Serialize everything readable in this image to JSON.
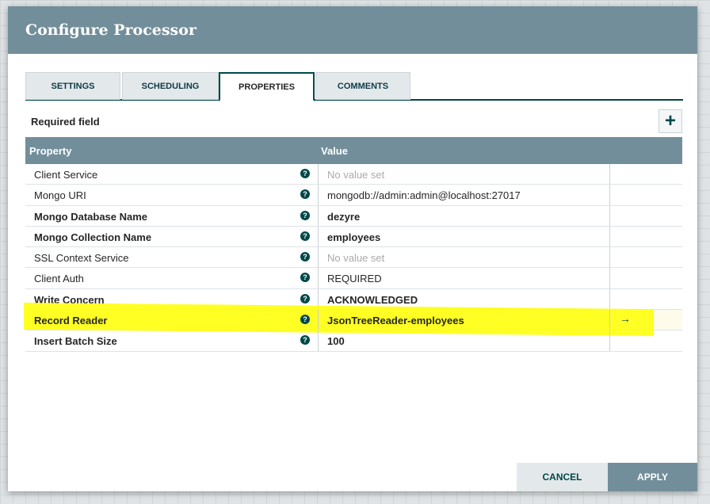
{
  "dialog": {
    "title": "Configure Processor"
  },
  "tabs": [
    {
      "label": "SETTINGS"
    },
    {
      "label": "SCHEDULING"
    },
    {
      "label": "PROPERTIES",
      "active": true
    },
    {
      "label": "COMMENTS"
    }
  ],
  "required_label": "Required field",
  "add_icon": "plus-icon",
  "table": {
    "headers": {
      "property": "Property",
      "value": "Value"
    },
    "rows": [
      {
        "name": "Client Service",
        "value": "No value set",
        "required": false,
        "empty": true
      },
      {
        "name": "Mongo URI",
        "value": "mongodb://admin:admin@localhost:27017",
        "required": false
      },
      {
        "name": "Mongo Database Name",
        "value": "dezyre",
        "required": true
      },
      {
        "name": "Mongo Collection Name",
        "value": "employees",
        "required": true
      },
      {
        "name": "SSL Context Service",
        "value": "No value set",
        "required": false,
        "empty": true
      },
      {
        "name": "Client Auth",
        "value": "REQUIRED",
        "required": false
      },
      {
        "name": "Write Concern",
        "value": "ACKNOWLEDGED",
        "required": true
      },
      {
        "name": "Record Reader",
        "value": "JsonTreeReader-employees",
        "required": true,
        "highlighted": true,
        "go_to": "→"
      },
      {
        "name": "Insert Batch Size",
        "value": "100",
        "required": true
      }
    ]
  },
  "highlight_color": "#ffff00",
  "buttons": {
    "cancel": "CANCEL",
    "apply": "APPLY"
  }
}
